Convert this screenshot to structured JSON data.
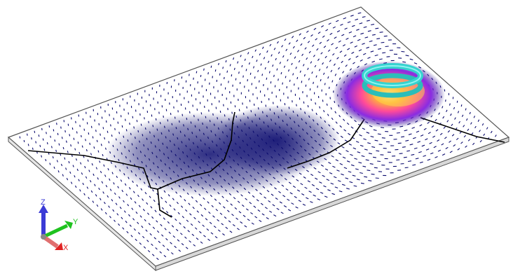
{
  "axes": {
    "z": {
      "label": "Z",
      "color": "#3b3bd6"
    },
    "y": {
      "label": "Y",
      "color": "#1fc21f"
    },
    "x": {
      "label": "X",
      "color": "#e02222"
    }
  },
  "colors": {
    "background": "#ffffff",
    "plate_edge": "#555555",
    "vector_field": "#0a0a6e",
    "crack_line": "#000000",
    "coil_ring": "#35d3cf",
    "hot_core": "#ffd24a"
  },
  "icons": [
    "xyz-triad-icon"
  ]
}
